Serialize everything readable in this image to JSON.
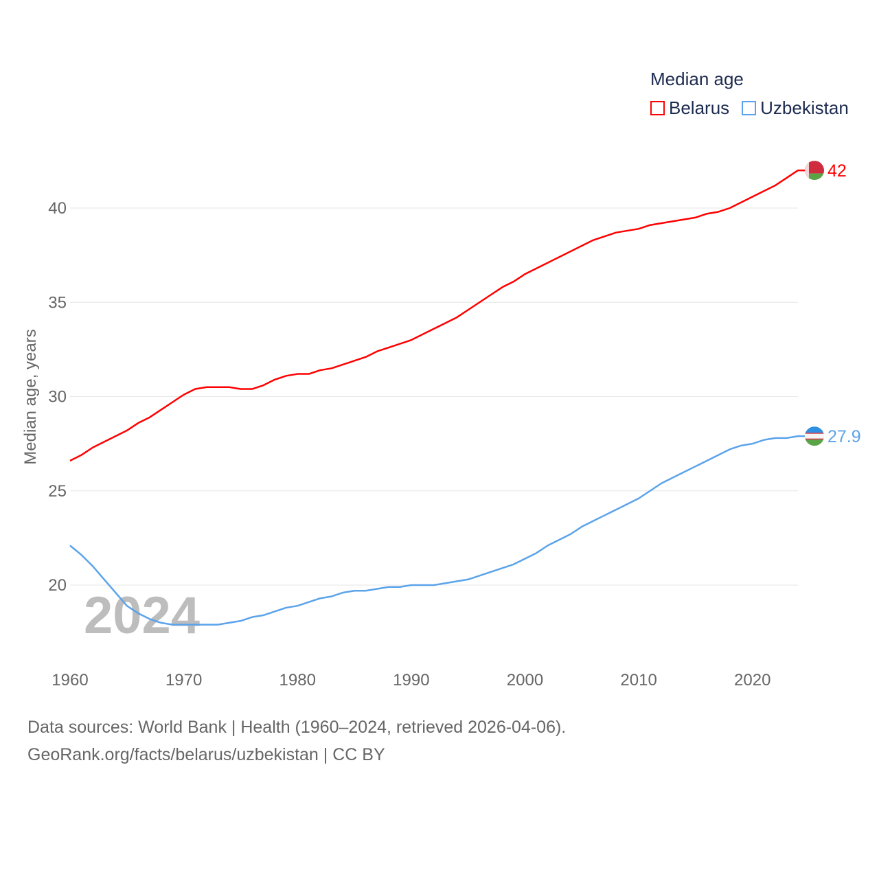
{
  "chart_data": {
    "type": "line",
    "title": "Median age",
    "xlabel": "",
    "ylabel": "Median age, years",
    "xlim": [
      1960,
      2024
    ],
    "ylim": [
      16,
      43
    ],
    "x_ticks": [
      1960,
      1970,
      1980,
      1990,
      2000,
      2010,
      2020
    ],
    "y_ticks": [
      20,
      25,
      30,
      35,
      40
    ],
    "grid": true,
    "legend_position": "top-right",
    "watermark_year": "2024",
    "x": [
      1960,
      1961,
      1962,
      1963,
      1964,
      1965,
      1966,
      1967,
      1968,
      1969,
      1970,
      1971,
      1972,
      1973,
      1974,
      1975,
      1976,
      1977,
      1978,
      1979,
      1980,
      1981,
      1982,
      1983,
      1984,
      1985,
      1986,
      1987,
      1988,
      1989,
      1990,
      1991,
      1992,
      1993,
      1994,
      1995,
      1996,
      1997,
      1998,
      1999,
      2000,
      2001,
      2002,
      2003,
      2004,
      2005,
      2006,
      2007,
      2008,
      2009,
      2010,
      2011,
      2012,
      2013,
      2014,
      2015,
      2016,
      2017,
      2018,
      2019,
      2020,
      2021,
      2022,
      2023,
      2024
    ],
    "series": [
      {
        "name": "Belarus",
        "color": "#ff0000",
        "end_label": "42",
        "values": [
          26.6,
          26.9,
          27.3,
          27.6,
          27.9,
          28.2,
          28.6,
          28.9,
          29.3,
          29.7,
          30.1,
          30.4,
          30.5,
          30.5,
          30.5,
          30.4,
          30.4,
          30.6,
          30.9,
          31.1,
          31.2,
          31.2,
          31.4,
          31.5,
          31.7,
          31.9,
          32.1,
          32.4,
          32.6,
          32.8,
          33.0,
          33.3,
          33.6,
          33.9,
          34.2,
          34.6,
          35.0,
          35.4,
          35.8,
          36.1,
          36.5,
          36.8,
          37.1,
          37.4,
          37.7,
          38.0,
          38.3,
          38.5,
          38.7,
          38.8,
          38.9,
          39.1,
          39.2,
          39.3,
          39.4,
          39.5,
          39.7,
          39.8,
          40.0,
          40.3,
          40.6,
          40.9,
          41.2,
          41.6,
          42.0
        ]
      },
      {
        "name": "Uzbekistan",
        "color": "#5ba3ea",
        "end_label": "27.9",
        "values": [
          22.1,
          21.6,
          21.0,
          20.3,
          19.6,
          18.9,
          18.5,
          18.2,
          18.0,
          17.9,
          17.9,
          17.9,
          17.9,
          17.9,
          18.0,
          18.1,
          18.3,
          18.4,
          18.6,
          18.8,
          18.9,
          19.1,
          19.3,
          19.4,
          19.6,
          19.7,
          19.7,
          19.8,
          19.9,
          19.9,
          20.0,
          20.0,
          20.0,
          20.1,
          20.2,
          20.3,
          20.5,
          20.7,
          20.9,
          21.1,
          21.4,
          21.7,
          22.1,
          22.4,
          22.7,
          23.1,
          23.4,
          23.7,
          24.0,
          24.3,
          24.6,
          25.0,
          25.4,
          25.7,
          26.0,
          26.3,
          26.6,
          26.9,
          27.2,
          27.4,
          27.5,
          27.7,
          27.8,
          27.8,
          27.9
        ]
      }
    ]
  },
  "footer": {
    "line1": "Data sources: World Bank | Health (1960–2024, retrieved 2026-04-06).",
    "line2": "GeoRank.org/facts/belarus/uzbekistan | CC BY"
  }
}
